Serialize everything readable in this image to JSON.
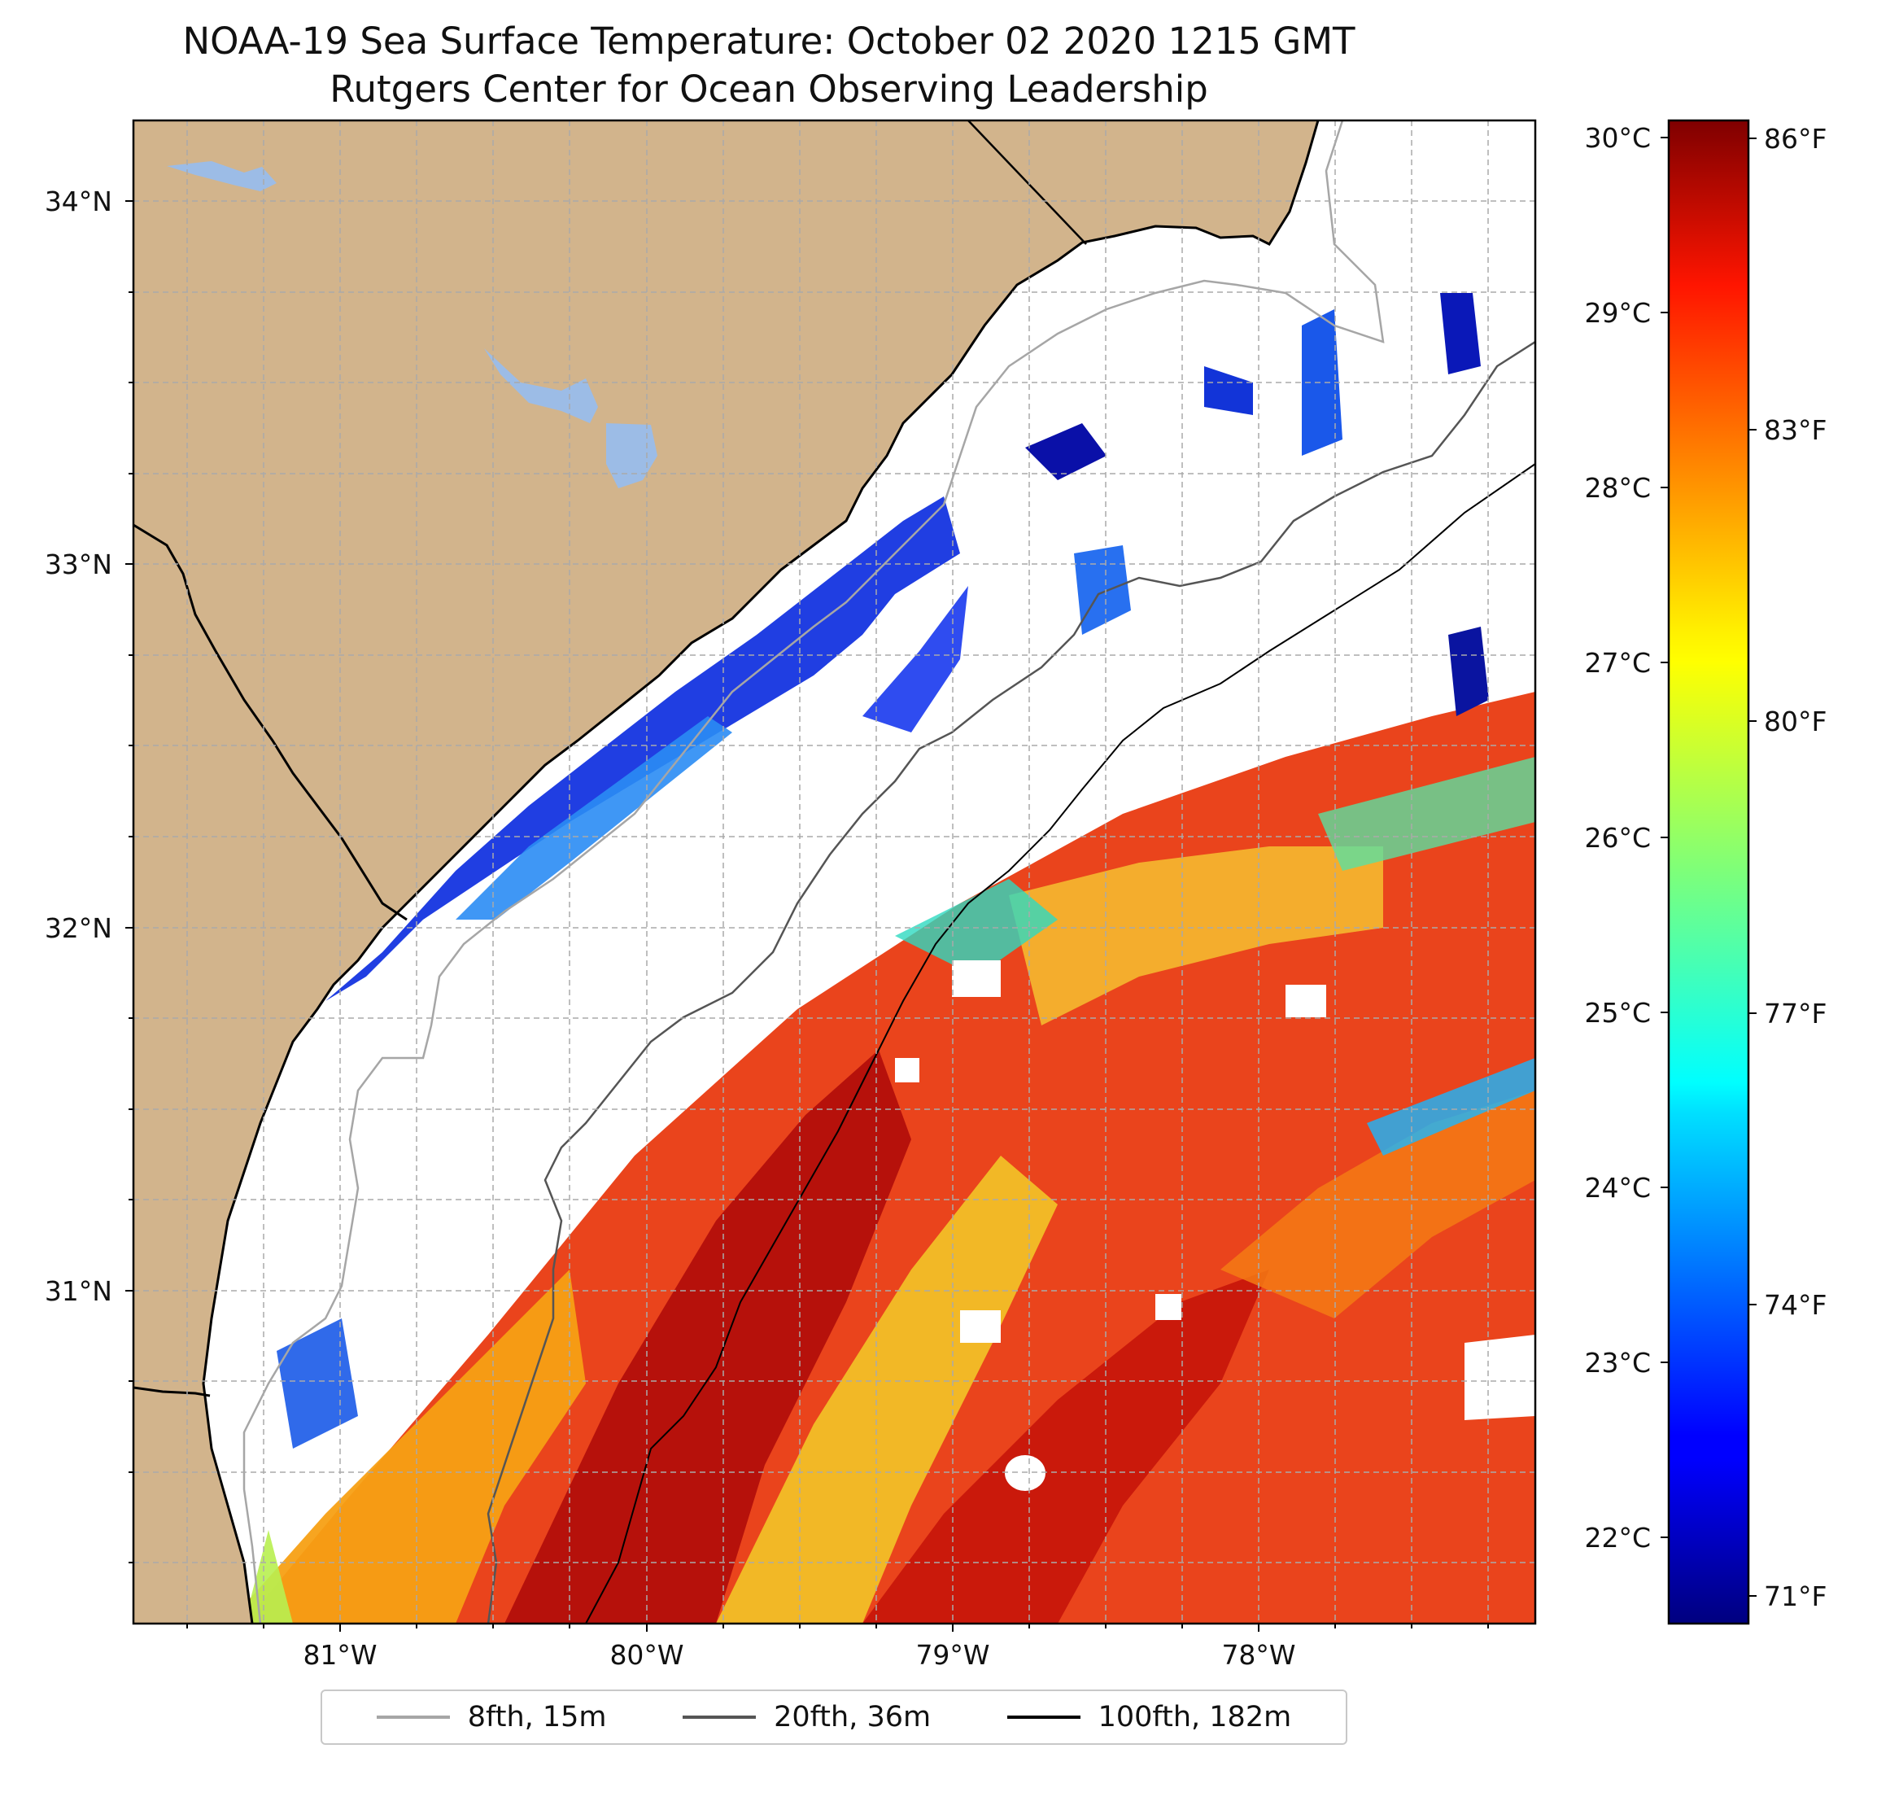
{
  "title": {
    "line1": "NOAA-19 Sea Surface Temperature: October 02 2020 1215 GMT",
    "line2": "Rutgers Center for Ocean Observing Leadership"
  },
  "map": {
    "extent": {
      "lon_min": -81.68,
      "lon_max": -77.12,
      "lat_min": 30.27,
      "lat_max": 34.22
    },
    "lat_ticks": [
      {
        "value": 34,
        "label": "34°N"
      },
      {
        "value": 33,
        "label": "33°N"
      },
      {
        "value": 32,
        "label": "32°N"
      },
      {
        "value": 31,
        "label": "31°N"
      }
    ],
    "lon_ticks": [
      {
        "value": -81,
        "label": "81°W"
      },
      {
        "value": -80,
        "label": "80°W"
      },
      {
        "value": -79,
        "label": "79°W"
      },
      {
        "value": -78,
        "label": "78°W"
      }
    ],
    "colors": {
      "land": "#d2b48c",
      "lakes": "#9cbce6",
      "ocean_no_data": "#ffffff",
      "grid": "#aaaaaa"
    }
  },
  "colorbar": {
    "colormap": "jet",
    "celsius_range": [
      21.6,
      30.2
    ],
    "celsius_ticks": [
      {
        "value": 30,
        "label": "30°C"
      },
      {
        "value": 29,
        "label": "29°C"
      },
      {
        "value": 28,
        "label": "28°C"
      },
      {
        "value": 27,
        "label": "27°C"
      },
      {
        "value": 26,
        "label": "26°C"
      },
      {
        "value": 25,
        "label": "25°C"
      },
      {
        "value": 24,
        "label": "24°C"
      },
      {
        "value": 23,
        "label": "23°C"
      },
      {
        "value": 22,
        "label": "22°C"
      }
    ],
    "fahrenheit_ticks": [
      {
        "value": 86,
        "label": "86°F"
      },
      {
        "value": 83,
        "label": "83°F"
      },
      {
        "value": 80,
        "label": "80°F"
      },
      {
        "value": 77,
        "label": "77°F"
      },
      {
        "value": 74,
        "label": "74°F"
      },
      {
        "value": 71,
        "label": "71°F"
      }
    ]
  },
  "legend": [
    {
      "label": "8fth, 15m",
      "color": "#a6a6a6"
    },
    {
      "label": "20fth, 36m",
      "color": "#555555"
    },
    {
      "label": "100fth, 182m",
      "color": "#000000"
    }
  ]
}
